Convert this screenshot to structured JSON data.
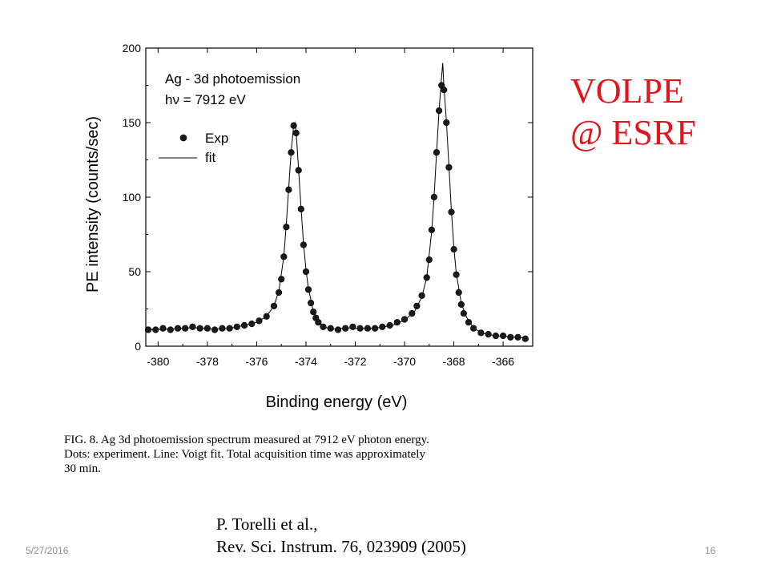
{
  "chart_data": {
    "type": "scatter",
    "xlabel": "Binding energy (eV)",
    "ylabel": "PE intensity (counts/sec)",
    "xlim": [
      -380.5,
      -364.8
    ],
    "ylim": [
      0,
      200
    ],
    "x_ticks": [
      -380,
      -378,
      -376,
      -374,
      -372,
      -370,
      -368,
      -366
    ],
    "y_ticks": [
      0,
      50,
      100,
      150,
      200
    ],
    "grid": false,
    "legend_position": "top-left",
    "legend_title": [
      "Ag - 3d photoemission",
      "hν = 7912 eV"
    ],
    "series": [
      {
        "name": "Exp",
        "style": "markers",
        "x": [
          -380.4,
          -380.1,
          -379.8,
          -379.5,
          -379.2,
          -378.9,
          -378.6,
          -378.3,
          -378.0,
          -377.7,
          -377.4,
          -377.1,
          -376.8,
          -376.5,
          -376.2,
          -375.9,
          -375.6,
          -375.3,
          -375.1,
          -375.0,
          -374.9,
          -374.8,
          -374.7,
          -374.6,
          -374.5,
          -374.4,
          -374.3,
          -374.2,
          -374.1,
          -374.0,
          -373.9,
          -373.8,
          -373.7,
          -373.6,
          -373.5,
          -373.3,
          -373.0,
          -372.7,
          -372.4,
          -372.1,
          -371.8,
          -371.5,
          -371.2,
          -370.9,
          -370.6,
          -370.3,
          -370.0,
          -369.7,
          -369.5,
          -369.3,
          -369.1,
          -369.0,
          -368.9,
          -368.8,
          -368.7,
          -368.6,
          -368.5,
          -368.4,
          -368.3,
          -368.2,
          -368.1,
          -368.0,
          -367.9,
          -367.8,
          -367.7,
          -367.6,
          -367.4,
          -367.2,
          -366.9,
          -366.6,
          -366.3,
          -366.0,
          -365.7,
          -365.4,
          -365.1
        ],
        "y": [
          11,
          11,
          12,
          11,
          12,
          12,
          13,
          12,
          12,
          11,
          12,
          12,
          13,
          14,
          15,
          17,
          20,
          27,
          36,
          45,
          60,
          80,
          105,
          130,
          148,
          143,
          118,
          92,
          68,
          50,
          38,
          29,
          23,
          19,
          16,
          13,
          12,
          11,
          12,
          13,
          12,
          12,
          12,
          13,
          14,
          16,
          18,
          22,
          27,
          34,
          46,
          58,
          78,
          100,
          130,
          158,
          175,
          172,
          150,
          120,
          90,
          65,
          48,
          36,
          28,
          22,
          16,
          12,
          9,
          8,
          7,
          7,
          6,
          6,
          5
        ]
      },
      {
        "name": "fit",
        "style": "line",
        "x": [
          -380.4,
          -379.5,
          -378.6,
          -377.7,
          -377.1,
          -376.5,
          -376.0,
          -375.6,
          -375.3,
          -375.1,
          -374.9,
          -374.8,
          -374.7,
          -374.6,
          -374.5,
          -374.45,
          -374.4,
          -374.3,
          -374.2,
          -374.1,
          -374.0,
          -373.9,
          -373.7,
          -373.5,
          -373.2,
          -372.8,
          -372.4,
          -372.0,
          -371.5,
          -371.0,
          -370.5,
          -370.0,
          -369.6,
          -369.3,
          -369.1,
          -368.9,
          -368.8,
          -368.7,
          -368.6,
          -368.5,
          -368.45,
          -368.4,
          -368.3,
          -368.2,
          -368.1,
          -368.0,
          -367.9,
          -367.7,
          -367.5,
          -367.2,
          -366.8,
          -366.3,
          -365.8,
          -365.1
        ],
        "y": [
          11,
          11.5,
          12.5,
          11.5,
          12,
          14,
          16,
          20,
          27,
          37,
          60,
          82,
          106,
          131,
          148,
          150,
          144,
          119,
          93,
          69,
          51,
          39,
          23,
          16,
          12.5,
          11.5,
          12.5,
          12,
          12,
          12.5,
          14,
          17.5,
          23,
          33,
          46,
          77,
          100,
          130,
          158,
          180,
          190,
          174,
          151,
          121,
          91,
          66,
          49,
          29,
          20,
          12,
          8.5,
          7,
          6.5,
          5.5
        ]
      }
    ]
  },
  "caption": {
    "line1": "FIG. 8. Ag 3d photoemission spectrum measured at 7912 eV photon energy.",
    "line2": "Dots: experiment. Line: Voigt fit. Total acquisition time was approximately",
    "line3": "30 min."
  },
  "annotation": {
    "line1": "VOLPE",
    "line2": "@ ESRF",
    "color": "#e3141c"
  },
  "citation": {
    "line1": "P. Torelli et al.,",
    "line2": "Rev. Sci. Instrum. 76, 023909 (2005)"
  },
  "footer": {
    "date": "5/27/2016",
    "page": "16"
  }
}
